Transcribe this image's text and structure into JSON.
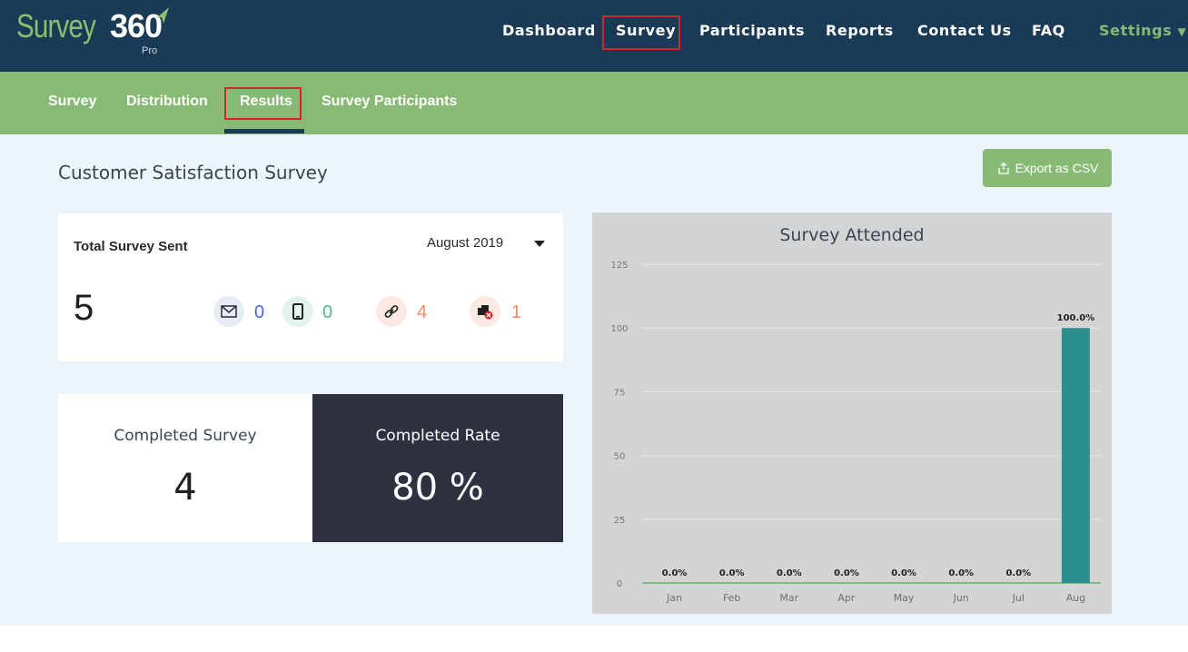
{
  "logo": {
    "word": "Survey",
    "number": "360",
    "edition": "Pro"
  },
  "top_nav": {
    "items": [
      "Dashboard",
      "Survey",
      "Participants",
      "Reports",
      "Contact Us",
      "FAQ"
    ],
    "settings": "Settings",
    "highlighted": "Survey"
  },
  "sub_nav": {
    "items": [
      "Survey",
      "Distribution",
      "Results",
      "Survey Participants"
    ],
    "active": "Results"
  },
  "page": {
    "title": "Customer Satisfaction Survey",
    "export_label": "Export as CSV"
  },
  "sent_card": {
    "label": "Total Survey Sent",
    "month": "August 2019",
    "total": "5",
    "channels": [
      {
        "icon": "email-icon",
        "value": "0",
        "color": "#4a68d9",
        "bg": "#e6ebf6"
      },
      {
        "icon": "mobile-icon",
        "value": "0",
        "color": "#52b788",
        "bg": "#e3f3ec"
      },
      {
        "icon": "link-icon",
        "value": "4",
        "color": "#f08a6b",
        "bg": "#fbeae4"
      },
      {
        "icon": "blocked-icon",
        "value": "1",
        "color": "#f08a6b",
        "bg": "#fbeae4"
      }
    ]
  },
  "completed": {
    "label": "Completed Survey",
    "value": "4"
  },
  "rate": {
    "label": "Completed Rate",
    "value": "80 %"
  },
  "chart_data": {
    "type": "bar",
    "title": "Survey Attended",
    "categories": [
      "Jan",
      "Feb",
      "Mar",
      "Apr",
      "May",
      "Jun",
      "Jul",
      "Aug"
    ],
    "values": [
      0,
      0,
      0,
      0,
      0,
      0,
      0,
      100
    ],
    "labels": [
      "0.0%",
      "0.0%",
      "0.0%",
      "0.0%",
      "0.0%",
      "0.0%",
      "0.0%",
      "100.0%"
    ],
    "ylim": [
      0,
      125
    ],
    "yticks": [
      0,
      25,
      50,
      75,
      100,
      125
    ],
    "bar_color": "#2b8f8f",
    "grid": true,
    "legend": "none"
  },
  "colors": {
    "header": "#1a3a55",
    "green": "#87bb75",
    "dark_card": "#2e3140",
    "highlight": "#d6252a"
  }
}
